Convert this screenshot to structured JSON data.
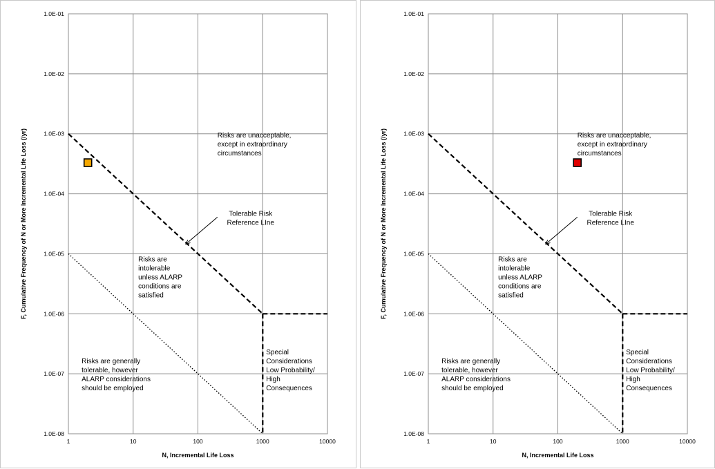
{
  "chart_data": [
    {
      "type": "line",
      "x_scale": "log",
      "y_scale": "log",
      "xlim": [
        1,
        10000
      ],
      "ylim": [
        1e-08,
        0.1
      ],
      "grid": true,
      "xlabel": "N, Incremental Life Loss",
      "ylabel": "F, Cumulative Frequency of N or More Incremental Life Loss (/yr)",
      "x_ticks": [
        "1",
        "10",
        "100",
        "1000",
        "10000"
      ],
      "y_ticks": [
        "1.0E-01",
        "1.0E-02",
        "1.0E-03",
        "1.0E-04",
        "1.0E-05",
        "1.0E-06",
        "1.0E-07",
        "1.0E-08"
      ],
      "lines": [
        {
          "style": "dashed",
          "points": [
            [
              1,
              0.001
            ],
            [
              1000,
              1e-06
            ]
          ]
        },
        {
          "style": "dashed",
          "points": [
            [
              1000,
              1e-06
            ],
            [
              10000,
              1e-06
            ]
          ]
        },
        {
          "style": "dashed",
          "points": [
            [
              1000,
              1e-06
            ],
            [
              1000,
              1e-08
            ]
          ]
        },
        {
          "style": "dotted",
          "points": [
            [
              1,
              1e-05
            ],
            [
              1000,
              1e-08
            ]
          ]
        }
      ],
      "points": [
        {
          "x": 2,
          "y": 0.00033,
          "color": "#f5a800"
        }
      ],
      "annotations": [
        {
          "text": [
            "Risks are unacceptable,",
            "except in extraordinary",
            "circumstances"
          ],
          "x": 200,
          "y": 0.00087
        },
        {
          "text": [
            "Tolerable Risk",
            "Reference LIne"
          ],
          "x": 650,
          "y": 4.3e-05,
          "align": "middle",
          "arrow_to": [
            65,
            1.45e-05
          ]
        },
        {
          "text": [
            "Risks are",
            "intolerable",
            "unless ALARP",
            "conditions are",
            "satisfied"
          ],
          "x": 12,
          "y": 7.5e-06
        },
        {
          "text": [
            "Risks are generally",
            "tolerable, however",
            "ALARP considerations",
            "should be employed"
          ],
          "x": 1.6,
          "y": 1.5e-07
        },
        {
          "text": [
            "Special",
            "Considerations",
            "Low Probability/",
            "High",
            "Consequences"
          ],
          "x": 1130,
          "y": 2.1e-07
        }
      ]
    },
    {
      "type": "line",
      "x_scale": "log",
      "y_scale": "log",
      "xlim": [
        1,
        10000
      ],
      "ylim": [
        1e-08,
        0.1
      ],
      "grid": true,
      "xlabel": "N, Incremental Life Loss",
      "ylabel": "F, Cumulative Frequency of N or More Incremental Life Loss (/yr)",
      "x_ticks": [
        "1",
        "10",
        "100",
        "1000",
        "10000"
      ],
      "y_ticks": [
        "1.0E-01",
        "1.0E-02",
        "1.0E-03",
        "1.0E-04",
        "1.0E-05",
        "1.0E-06",
        "1.0E-07",
        "1.0E-08"
      ],
      "lines": [
        {
          "style": "dashed",
          "points": [
            [
              1,
              0.001
            ],
            [
              1000,
              1e-06
            ]
          ]
        },
        {
          "style": "dashed",
          "points": [
            [
              1000,
              1e-06
            ],
            [
              10000,
              1e-06
            ]
          ]
        },
        {
          "style": "dashed",
          "points": [
            [
              1000,
              1e-06
            ],
            [
              1000,
              1e-08
            ]
          ]
        },
        {
          "style": "dotted",
          "points": [
            [
              1,
              1e-05
            ],
            [
              1000,
              1e-08
            ]
          ]
        }
      ],
      "points": [
        {
          "x": 200,
          "y": 0.00033,
          "color": "#e00000"
        }
      ],
      "annotations": [
        {
          "text": [
            "Risks are unacceptable,",
            "except in extraordinary",
            "circumstances"
          ],
          "x": 200,
          "y": 0.00087
        },
        {
          "text": [
            "Tolerable Risk",
            "Reference LIne"
          ],
          "x": 650,
          "y": 4.3e-05,
          "align": "middle",
          "arrow_to": [
            65,
            1.45e-05
          ]
        },
        {
          "text": [
            "Risks are",
            "intolerable",
            "unless ALARP",
            "conditions are",
            "satisfied"
          ],
          "x": 12,
          "y": 7.5e-06
        },
        {
          "text": [
            "Risks are generally",
            "tolerable, however",
            "ALARP considerations",
            "should be employed"
          ],
          "x": 1.6,
          "y": 1.5e-07
        },
        {
          "text": [
            "Special",
            "Considerations",
            "Low Probability/",
            "High",
            "Consequences"
          ],
          "x": 1130,
          "y": 2.1e-07
        }
      ]
    }
  ]
}
